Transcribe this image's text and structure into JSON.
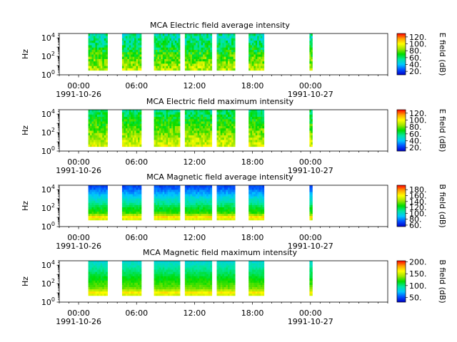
{
  "figure": {
    "colormap_stops": [
      "#0000c8",
      "#0050ff",
      "#00c8ff",
      "#00e6a0",
      "#00dc00",
      "#a0e600",
      "#ffff00",
      "#ffa000",
      "#ff0000"
    ]
  },
  "chart_data": [
    {
      "type": "heatmap",
      "title": "MCA  Electric field average intensity",
      "xlabel": "",
      "ylabel": "Hz",
      "y_scale": "log",
      "ylim": [
        1,
        30000
      ],
      "y_ticks": [
        {
          "value": 1,
          "exp": "0"
        },
        {
          "value": 100,
          "exp": "2"
        },
        {
          "value": 10000,
          "exp": "4"
        }
      ],
      "xlim_hours": [
        -2,
        32
      ],
      "x_ticks": [
        {
          "hour": 0,
          "time": "00:00",
          "date": "1991-10-26"
        },
        {
          "hour": 6,
          "time": "06:00",
          "date": ""
        },
        {
          "hour": 12,
          "time": "12:00",
          "date": ""
        },
        {
          "hour": 18,
          "time": "18:00",
          "date": ""
        },
        {
          "hour": 24,
          "time": "00:00",
          "date": "1991-10-27"
        }
      ],
      "colorbar": {
        "label": "E field (dB)",
        "range": [
          10,
          130
        ],
        "ticks": [
          20,
          40,
          60,
          80,
          100,
          120
        ],
        "tick_labels": [
          "20.",
          "40.",
          "60.",
          "80.",
          "100.",
          "120."
        ]
      },
      "data_freq_range_hz": [
        3,
        30000
      ],
      "data_segments_hours": [
        [
          1.0,
          3.0
        ],
        [
          4.5,
          6.5
        ],
        [
          7.8,
          10.5
        ],
        [
          11.0,
          13.8
        ],
        [
          14.3,
          16.2
        ],
        [
          17.6,
          19.2
        ],
        [
          23.9,
          24.2
        ]
      ],
      "intensity_profile": {
        "low_freq_db": 90,
        "high_freq_db": 50,
        "contrast": 25,
        "top_band_db": 55,
        "seed": 3
      }
    },
    {
      "type": "heatmap",
      "title": "MCA  Electric field maximum intensity",
      "xlabel": "",
      "ylabel": "Hz",
      "y_scale": "log",
      "ylim": [
        1,
        30000
      ],
      "y_ticks": [
        {
          "value": 1,
          "exp": "0"
        },
        {
          "value": 100,
          "exp": "2"
        },
        {
          "value": 10000,
          "exp": "4"
        }
      ],
      "xlim_hours": [
        -2,
        32
      ],
      "x_ticks": [
        {
          "hour": 0,
          "time": "00:00",
          "date": "1991-10-26"
        },
        {
          "hour": 6,
          "time": "06:00",
          "date": ""
        },
        {
          "hour": 12,
          "time": "12:00",
          "date": ""
        },
        {
          "hour": 18,
          "time": "18:00",
          "date": ""
        },
        {
          "hour": 24,
          "time": "00:00",
          "date": "1991-10-27"
        }
      ],
      "colorbar": {
        "label": "E field (dB)",
        "range": [
          10,
          130
        ],
        "ticks": [
          20,
          40,
          60,
          80,
          100,
          120
        ],
        "tick_labels": [
          "20.",
          "40.",
          "60.",
          "80.",
          "100.",
          "120."
        ]
      },
      "data_freq_range_hz": [
        3,
        30000
      ],
      "data_segments_hours": [
        [
          1.0,
          3.0
        ],
        [
          4.5,
          6.5
        ],
        [
          7.8,
          10.5
        ],
        [
          11.0,
          13.8
        ],
        [
          14.3,
          16.2
        ],
        [
          17.6,
          19.2
        ],
        [
          23.9,
          24.2
        ]
      ],
      "intensity_profile": {
        "low_freq_db": 95,
        "high_freq_db": 60,
        "contrast": 20,
        "top_band_db": 60,
        "seed": 7
      }
    },
    {
      "type": "heatmap",
      "title": "MCA  Magnetic field average intensity",
      "xlabel": "",
      "ylabel": "Hz",
      "y_scale": "log",
      "ylim": [
        1,
        30000
      ],
      "y_ticks": [
        {
          "value": 1,
          "exp": "0"
        },
        {
          "value": 100,
          "exp": "2"
        },
        {
          "value": 10000,
          "exp": "4"
        }
      ],
      "xlim_hours": [
        -2,
        32
      ],
      "x_ticks": [
        {
          "hour": 0,
          "time": "00:00",
          "date": "1991-10-26"
        },
        {
          "hour": 6,
          "time": "06:00",
          "date": ""
        },
        {
          "hour": 12,
          "time": "12:00",
          "date": ""
        },
        {
          "hour": 18,
          "time": "18:00",
          "date": ""
        },
        {
          "hour": 24,
          "time": "00:00",
          "date": "1991-10-27"
        }
      ],
      "colorbar": {
        "label": "B field (dB)",
        "range": [
          55,
          195
        ],
        "ticks": [
          60,
          80,
          100,
          120,
          140,
          160,
          180
        ],
        "tick_labels": [
          "60.",
          "80.",
          "100.",
          "120.",
          "140.",
          "160.",
          "180."
        ]
      },
      "data_freq_range_hz": [
        5,
        30000
      ],
      "data_segments_hours": [
        [
          1.0,
          3.0
        ],
        [
          4.5,
          6.5
        ],
        [
          7.8,
          10.5
        ],
        [
          11.0,
          13.8
        ],
        [
          14.3,
          16.2
        ],
        [
          17.6,
          19.2
        ],
        [
          23.9,
          24.2
        ]
      ],
      "intensity_profile": {
        "low_freq_db": 145,
        "high_freq_db": 70,
        "contrast": 10,
        "top_band_db": 70,
        "seed": 11
      }
    },
    {
      "type": "heatmap",
      "title": "MCA  Magnetic field maximum intensity",
      "xlabel": "",
      "ylabel": "Hz",
      "y_scale": "log",
      "ylim": [
        1,
        30000
      ],
      "y_ticks": [
        {
          "value": 1,
          "exp": "0"
        },
        {
          "value": 100,
          "exp": "2"
        },
        {
          "value": 10000,
          "exp": "4"
        }
      ],
      "xlim_hours": [
        -2,
        32
      ],
      "x_ticks": [
        {
          "hour": 0,
          "time": "00:00",
          "date": "1991-10-26"
        },
        {
          "hour": 6,
          "time": "06:00",
          "date": ""
        },
        {
          "hour": 12,
          "time": "12:00",
          "date": ""
        },
        {
          "hour": 18,
          "time": "18:00",
          "date": ""
        },
        {
          "hour": 24,
          "time": "00:00",
          "date": "1991-10-27"
        }
      ],
      "colorbar": {
        "label": "B field (dB)",
        "range": [
          30,
          205
        ],
        "ticks": [
          50,
          100,
          150,
          200
        ],
        "tick_labels": [
          "50.",
          "100.",
          "150.",
          "200."
        ]
      },
      "data_freq_range_hz": [
        5,
        30000
      ],
      "data_segments_hours": [
        [
          1.0,
          3.0
        ],
        [
          4.5,
          6.5
        ],
        [
          7.8,
          10.5
        ],
        [
          11.0,
          13.8
        ],
        [
          14.3,
          16.2
        ],
        [
          17.6,
          19.2
        ],
        [
          23.9,
          24.2
        ]
      ],
      "intensity_profile": {
        "low_freq_db": 145,
        "high_freq_db": 85,
        "contrast": 10,
        "top_band_db": 85,
        "seed": 19
      }
    }
  ]
}
